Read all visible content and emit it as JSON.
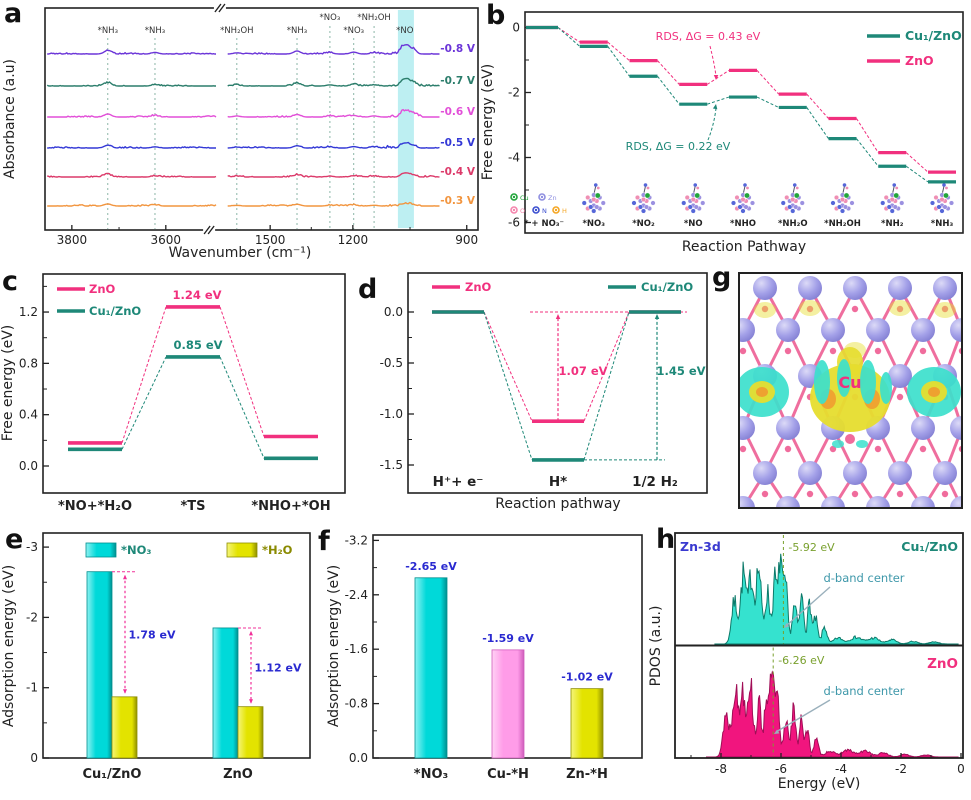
{
  "figure": {
    "panel_letters": {
      "a": "a",
      "b": "b",
      "c": "c",
      "d": "d",
      "e": "e",
      "f": "f",
      "g": "g",
      "h": "h"
    }
  },
  "chart_data": {
    "a": {
      "type": "line",
      "xlabel": "Wavenumber (cm⁻¹)",
      "ylabel": "Absorbance (a.u)",
      "x_ticks": [
        {
          "label": "3800",
          "xf": 0.062
        },
        {
          "label": "3600",
          "xf": 0.279
        },
        {
          "label": "1500",
          "xf": 0.52
        },
        {
          "label": "1200",
          "xf": 0.711
        },
        {
          "label": "900",
          "xf": 0.974
        }
      ],
      "minor_ticks_xf": [
        0.171,
        0.615,
        0.843
      ],
      "axis_break": {
        "top_xf": 0.404,
        "bottom_xf": 0.379
      },
      "segments": [
        [
          0.005,
          0.398
        ],
        [
          0.422,
          0.912
        ]
      ],
      "series": [
        {
          "label": "-0.8 V",
          "color": "#6b35d8",
          "baseline": 54,
          "no_h": 11
        },
        {
          "label": "-0.7 V",
          "color": "#2b7d6b",
          "baseline": 86,
          "no_h": 10
        },
        {
          "label": "-0.6 V",
          "color": "#e24fd8",
          "baseline": 117,
          "no_h": 9
        },
        {
          "label": "-0.5 V",
          "color": "#3338d6",
          "baseline": 148,
          "no_h": 8
        },
        {
          "label": "-0.4 V",
          "color": "#dc3a6a",
          "baseline": 177,
          "no_h": 7
        },
        {
          "label": "-0.3 V",
          "color": "#f2953f",
          "baseline": 206,
          "no_h": 5
        }
      ],
      "peaks": [
        {
          "label": "*NH₃",
          "xf": 0.145,
          "row": 0,
          "h": 5,
          "dash": true
        },
        {
          "label": "*NH₃",
          "xf": 0.254,
          "row": 0,
          "h": 2.2,
          "dash": true
        },
        {
          "label": "*NH₂OH",
          "xf": 0.443,
          "row": 0,
          "h": 1.6,
          "dash": true
        },
        {
          "label": "*NH₃",
          "xf": 0.582,
          "row": 0,
          "h": 4.2,
          "dash": true
        },
        {
          "label": "*NO₃",
          "xf": 0.658,
          "row": 1,
          "h": 1.8,
          "dash": true
        },
        {
          "label": "*NO₃",
          "xf": 0.713,
          "row": 0,
          "h": 2.6,
          "dash": true
        },
        {
          "label": "*NH₂OH",
          "xf": 0.76,
          "row": 1,
          "h": 1.8,
          "dash": true
        },
        {
          "label": "*NO",
          "xf": 0.831,
          "row": 0,
          "h": 0,
          "dash": false
        }
      ],
      "highlight_band": {
        "xf0": 0.815,
        "xf1": 0.852,
        "color": "#bdeff2"
      },
      "guide_color": "#7fae9e"
    },
    "b": {
      "type": "step",
      "ylabel": "Free energy (eV)",
      "xlabel": "Reaction Pathway",
      "yticks": [
        "0",
        "-2",
        "-4",
        "-6"
      ],
      "ytick_vals": [
        0,
        -2,
        -4,
        -6
      ],
      "categories": [
        "* + NO₃⁻",
        "*NO₃",
        "*NO₂",
        "*NO",
        "*NHO",
        "*NH₂O",
        "*NH₂OH",
        "*NH₂",
        "*NH₃"
      ],
      "series": [
        {
          "name": "ZnO",
          "color": "#f1307e",
          "values": [
            0,
            -0.45,
            -1.02,
            -1.75,
            -1.32,
            -2.05,
            -2.8,
            -3.85,
            -4.45
          ]
        },
        {
          "name": "Cu₁/ZnO",
          "color": "#1e8878",
          "values": [
            0,
            -0.58,
            -1.5,
            -2.36,
            -2.14,
            -2.46,
            -3.42,
            -4.27,
            -4.75
          ]
        }
      ],
      "legend_order": [
        "Cu₁/ZnO",
        "ZnO"
      ],
      "annotations": [
        {
          "text": "RDS, ΔG = 0.43 eV",
          "color": "#f1307e"
        },
        {
          "text": "RDS, ΔG = 0.22 eV",
          "color": "#1e8878"
        }
      ],
      "atom_legend": [
        {
          "label": "Cu",
          "color": "#21a53a"
        },
        {
          "label": "Zn",
          "color": "#8f8fe0"
        },
        {
          "label": "O",
          "color": "#f585ad"
        },
        {
          "label": "N",
          "color": "#3b4fd0"
        },
        {
          "label": "H",
          "color": "#f5a623"
        }
      ],
      "cluster_colors": {
        "body1": "#9b90e0",
        "body2": "#ef8fb4",
        "body3": "#5566d8",
        "dopant": "#21a53a"
      }
    },
    "c": {
      "type": "step",
      "ylabel": "Free energy (eV)",
      "yticks": [
        "0.0",
        "0.4",
        "0.8",
        "1.2"
      ],
      "ytick_vals": [
        0,
        0.4,
        0.8,
        1.2
      ],
      "categories": [
        "*NO+*H₂O",
        "*TS",
        "*NHO+*OH"
      ],
      "series": [
        {
          "name": "ZnO",
          "color": "#f1307e",
          "values": [
            0.18,
            1.24,
            0.23
          ]
        },
        {
          "name": "Cu₁/ZnO",
          "color": "#1e8878",
          "values": [
            0.13,
            0.85,
            0.06
          ]
        }
      ],
      "value_labels": [
        {
          "text": "1.24 eV",
          "color": "#f1307e"
        },
        {
          "text": "0.85 eV",
          "color": "#1e8878"
        }
      ]
    },
    "d": {
      "type": "step",
      "ylabel": "Free energy (eV)",
      "xlabel": "Reaction pathway",
      "yticks": [
        "0.0",
        "-0.5",
        "-1.0",
        "-1.5"
      ],
      "ytick_vals": [
        0,
        -0.5,
        -1.0,
        -1.5
      ],
      "categories": [
        "H⁺+ e⁻",
        "H*",
        "1/2 H₂"
      ],
      "series": [
        {
          "name": "ZnO",
          "color": "#f1307e",
          "values": [
            0,
            -1.07,
            0
          ]
        },
        {
          "name": "Cu₁/ZnO",
          "color": "#1e8878",
          "values": [
            0,
            -1.45,
            0
          ]
        }
      ],
      "annotations": [
        {
          "text": "1.07 eV",
          "color": "#f1307e"
        },
        {
          "text": "1.45 eV",
          "color": "#1e8878"
        }
      ]
    },
    "e": {
      "type": "bar",
      "ylabel": "Adsorption energy (eV)",
      "yticks": [
        "0",
        "-1",
        "-2",
        "-3"
      ],
      "ytick_vals": [
        0,
        -1,
        -2,
        -3
      ],
      "categories": [
        "Cu₁/ZnO",
        "ZnO"
      ],
      "series": [
        {
          "name": "*NO₃",
          "color": "#00d9d9",
          "light": "#8ff2f2",
          "dark": "#008f8f",
          "label_color": "#1e8878",
          "values": [
            -2.65,
            -1.85
          ]
        },
        {
          "name": "*H₂O",
          "color": "#e3e300",
          "light": "#f5f57a",
          "dark": "#8f8f00",
          "label_color": "#8a8a00",
          "values": [
            -0.87,
            -0.73
          ]
        }
      ],
      "diff_annotations": [
        "1.78 eV",
        "1.12 eV"
      ],
      "annotation_color": "#2a2ad0",
      "arrow_color": "#f13099"
    },
    "f": {
      "type": "bar",
      "ylabel": "Adsorption energy (eV)",
      "yticks": [
        "0.0",
        "-0.8",
        "-1.6",
        "-2.4",
        "-3.2"
      ],
      "ytick_vals": [
        0,
        -0.8,
        -1.6,
        -2.4,
        -3.2
      ],
      "categories": [
        "*NO₃",
        "Cu-*H",
        "Zn-*H"
      ],
      "values": [
        -2.65,
        -1.59,
        -1.02
      ],
      "value_labels": [
        "-2.65 eV",
        "-1.59 eV",
        "-1.02 eV"
      ],
      "bar_colors": [
        "#00d9d9",
        "#ff9ce8",
        "#e3e300"
      ],
      "bar_lights": [
        "#8ff2f2",
        "#ffd2f5",
        "#f5f57a"
      ],
      "bar_darks": [
        "#008f8f",
        "#cf5cbb",
        "#8f8f00"
      ],
      "label_color": "#2a2ad0"
    },
    "g": {
      "type": "structure",
      "center_label": "Cu",
      "center_label_color": "#f1307e",
      "sphere_color": "#a3a0e8",
      "sphere_light": "#dcdaf7",
      "sphere_dark": "#7f7bd0",
      "bond_color": "#ef6e9e",
      "small_atom_color": "#f06c9c",
      "iso_positive_color": "#e6dd2e",
      "iso_negative_color": "#3ce0cc",
      "iso_inner_color": "#f09a30"
    },
    "h": {
      "type": "area",
      "xlabel": "Energy (eV)",
      "ylabel": "PDOS (a.u.)",
      "xticks": [
        "-8",
        "-6",
        "-4",
        "-2",
        "0"
      ],
      "xtick_vals": [
        -8,
        -6,
        -4,
        -2,
        0
      ],
      "orbital_label": "Zn-3d",
      "orbital_label_color": "#3a3ad0",
      "dband_annotation": "d-band center",
      "dband_annotation_color": "#3f98aa",
      "dband_label_color": "#79a02e",
      "subpanels": [
        {
          "name": "Cu₁/ZnO",
          "name_color": "#1e8878",
          "fill": "#35e2cf",
          "stroke": "#0c7a6a",
          "dband_text": "-5.92 eV",
          "dband_x": -5.92
        },
        {
          "name": "ZnO",
          "name_color": "#f1307e",
          "fill": "#f1157e",
          "stroke": "#a00d56",
          "dband_text": "-6.26 eV",
          "dband_x": -6.26
        }
      ]
    }
  }
}
